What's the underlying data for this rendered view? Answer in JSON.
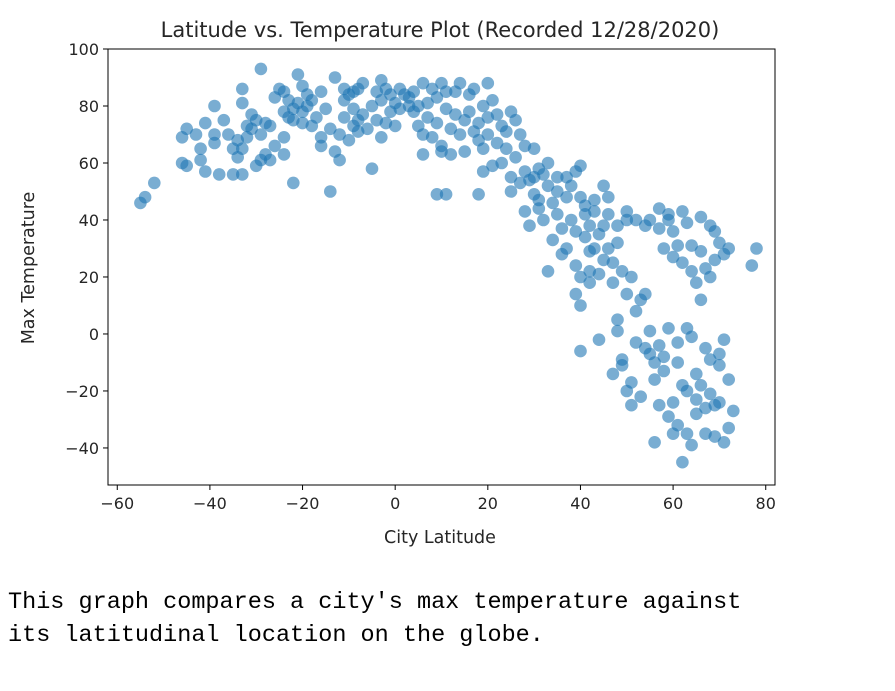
{
  "chart_data": {
    "type": "scatter",
    "title": "Latitude vs. Temperature Plot (Recorded 12/28/2020)",
    "xlabel": "City Latitude",
    "ylabel": "Max Temperature",
    "xlim": [
      -62,
      82
    ],
    "ylim": [
      -53,
      100
    ],
    "xticks": [
      -60,
      -40,
      -20,
      0,
      20,
      40,
      60,
      80
    ],
    "yticks": [
      -40,
      -20,
      0,
      20,
      40,
      60,
      80,
      100
    ],
    "grid": false,
    "marker_color": "#1f77b4",
    "marker_alpha": 0.6,
    "points": [
      [
        -55,
        46
      ],
      [
        -54,
        48
      ],
      [
        -52,
        53
      ],
      [
        -46,
        60
      ],
      [
        -46,
        69
      ],
      [
        -45,
        72
      ],
      [
        -45,
        59
      ],
      [
        -43,
        70
      ],
      [
        -42,
        61
      ],
      [
        -42,
        65
      ],
      [
        -41,
        74
      ],
      [
        -41,
        57
      ],
      [
        -39,
        80
      ],
      [
        -39,
        70
      ],
      [
        -39,
        67
      ],
      [
        -38,
        56
      ],
      [
        -37,
        75
      ],
      [
        -36,
        70
      ],
      [
        -35,
        56
      ],
      [
        -35,
        65
      ],
      [
        -34,
        62
      ],
      [
        -34,
        68
      ],
      [
        -33,
        81
      ],
      [
        -33,
        86
      ],
      [
        -33,
        65
      ],
      [
        -33,
        56
      ],
      [
        -32,
        73
      ],
      [
        -32,
        69
      ],
      [
        -31,
        77
      ],
      [
        -31,
        72
      ],
      [
        -30,
        59
      ],
      [
        -30,
        75
      ],
      [
        -29,
        93
      ],
      [
        -29,
        61
      ],
      [
        -29,
        70
      ],
      [
        -28,
        74
      ],
      [
        -28,
        63
      ],
      [
        -27,
        73
      ],
      [
        -27,
        61
      ],
      [
        -26,
        83
      ],
      [
        -26,
        66
      ],
      [
        -25,
        86
      ],
      [
        -24,
        78
      ],
      [
        -24,
        85
      ],
      [
        -24,
        63
      ],
      [
        -24,
        69
      ],
      [
        -23,
        76
      ],
      [
        -23,
        82
      ],
      [
        -22,
        79
      ],
      [
        -22,
        53
      ],
      [
        -22,
        75
      ],
      [
        -21,
        91
      ],
      [
        -21,
        81
      ],
      [
        -20,
        87
      ],
      [
        -20,
        78
      ],
      [
        -20,
        74
      ],
      [
        -19,
        84
      ],
      [
        -19,
        80
      ],
      [
        -18,
        73
      ],
      [
        -18,
        82
      ],
      [
        -17,
        76
      ],
      [
        -16,
        85
      ],
      [
        -16,
        69
      ],
      [
        -16,
        66
      ],
      [
        -15,
        79
      ],
      [
        -14,
        50
      ],
      [
        -14,
        72
      ],
      [
        -13,
        90
      ],
      [
        -13,
        64
      ],
      [
        -12,
        70
      ],
      [
        -12,
        61
      ],
      [
        -11,
        86
      ],
      [
        -11,
        82
      ],
      [
        -11,
        76
      ],
      [
        -10,
        84
      ],
      [
        -10,
        68
      ],
      [
        -9,
        85
      ],
      [
        -9,
        73
      ],
      [
        -9,
        79
      ],
      [
        -8,
        86
      ],
      [
        -8,
        75
      ],
      [
        -8,
        71
      ],
      [
        -7,
        77
      ],
      [
        -7,
        88
      ],
      [
        -6,
        72
      ],
      [
        -5,
        58
      ],
      [
        -5,
        80
      ],
      [
        -4,
        85
      ],
      [
        -4,
        75
      ],
      [
        -3,
        89
      ],
      [
        -3,
        69
      ],
      [
        -3,
        82
      ],
      [
        -2,
        74
      ],
      [
        -2,
        86
      ],
      [
        -1,
        78
      ],
      [
        -1,
        84
      ],
      [
        0,
        81
      ],
      [
        0,
        73
      ],
      [
        1,
        86
      ],
      [
        1,
        79
      ],
      [
        2,
        84
      ],
      [
        3,
        80
      ],
      [
        3,
        83
      ],
      [
        4,
        85
      ],
      [
        4,
        78
      ],
      [
        5,
        80
      ],
      [
        5,
        73
      ],
      [
        6,
        88
      ],
      [
        6,
        70
      ],
      [
        6,
        63
      ],
      [
        7,
        81
      ],
      [
        7,
        76
      ],
      [
        8,
        86
      ],
      [
        8,
        69
      ],
      [
        9,
        83
      ],
      [
        9,
        49
      ],
      [
        9,
        74
      ],
      [
        10,
        66
      ],
      [
        10,
        88
      ],
      [
        10,
        64
      ],
      [
        11,
        85
      ],
      [
        11,
        79
      ],
      [
        11,
        49
      ],
      [
        12,
        72
      ],
      [
        12,
        63
      ],
      [
        13,
        77
      ],
      [
        13,
        85
      ],
      [
        14,
        70
      ],
      [
        14,
        88
      ],
      [
        15,
        75
      ],
      [
        15,
        64
      ],
      [
        16,
        84
      ],
      [
        16,
        78
      ],
      [
        17,
        71
      ],
      [
        17,
        86
      ],
      [
        18,
        68
      ],
      [
        18,
        74
      ],
      [
        18,
        49
      ],
      [
        19,
        80
      ],
      [
        19,
        57
      ],
      [
        19,
        65
      ],
      [
        20,
        88
      ],
      [
        20,
        70
      ],
      [
        20,
        76
      ],
      [
        21,
        59
      ],
      [
        21,
        82
      ],
      [
        22,
        77
      ],
      [
        22,
        67
      ],
      [
        23,
        73
      ],
      [
        23,
        60
      ],
      [
        24,
        71
      ],
      [
        24,
        65
      ],
      [
        25,
        55
      ],
      [
        25,
        50
      ],
      [
        25,
        78
      ],
      [
        26,
        75
      ],
      [
        26,
        62
      ],
      [
        27,
        53
      ],
      [
        27,
        70
      ],
      [
        28,
        43
      ],
      [
        28,
        57
      ],
      [
        28,
        66
      ],
      [
        29,
        54
      ],
      [
        29,
        38
      ],
      [
        30,
        65
      ],
      [
        30,
        49
      ],
      [
        30,
        55
      ],
      [
        31,
        44
      ],
      [
        31,
        47
      ],
      [
        31,
        58
      ],
      [
        32,
        40
      ],
      [
        32,
        56
      ],
      [
        33,
        52
      ],
      [
        33,
        60
      ],
      [
        33,
        22
      ],
      [
        34,
        46
      ],
      [
        34,
        33
      ],
      [
        35,
        50
      ],
      [
        35,
        55
      ],
      [
        35,
        42
      ],
      [
        36,
        37
      ],
      [
        36,
        28
      ],
      [
        37,
        48
      ],
      [
        37,
        55
      ],
      [
        37,
        30
      ],
      [
        38,
        40
      ],
      [
        38,
        52
      ],
      [
        39,
        14
      ],
      [
        39,
        57
      ],
      [
        39,
        24
      ],
      [
        39,
        36
      ],
      [
        40,
        48
      ],
      [
        40,
        59
      ],
      [
        40,
        10
      ],
      [
        40,
        -6
      ],
      [
        40,
        20
      ],
      [
        41,
        42
      ],
      [
        41,
        45
      ],
      [
        41,
        34
      ],
      [
        42,
        18
      ],
      [
        42,
        22
      ],
      [
        42,
        38
      ],
      [
        42,
        29
      ],
      [
        43,
        43
      ],
      [
        43,
        30
      ],
      [
        43,
        47
      ],
      [
        44,
        -2
      ],
      [
        44,
        35
      ],
      [
        44,
        21
      ],
      [
        45,
        52
      ],
      [
        45,
        38
      ],
      [
        45,
        26
      ],
      [
        46,
        42
      ],
      [
        46,
        30
      ],
      [
        46,
        48
      ],
      [
        47,
        18
      ],
      [
        47,
        -14
      ],
      [
        47,
        25
      ],
      [
        48,
        5
      ],
      [
        48,
        1
      ],
      [
        48,
        38
      ],
      [
        48,
        32
      ],
      [
        49,
        -9
      ],
      [
        49,
        -11
      ],
      [
        49,
        22
      ],
      [
        50,
        -20
      ],
      [
        50,
        40
      ],
      [
        50,
        14
      ],
      [
        50,
        43
      ],
      [
        51,
        -17
      ],
      [
        51,
        -25
      ],
      [
        51,
        20
      ],
      [
        52,
        -3
      ],
      [
        52,
        40
      ],
      [
        52,
        8
      ],
      [
        53,
        12
      ],
      [
        53,
        -22
      ],
      [
        54,
        -5
      ],
      [
        54,
        38
      ],
      [
        54,
        14
      ],
      [
        55,
        1
      ],
      [
        55,
        40
      ],
      [
        55,
        -7
      ],
      [
        56,
        -38
      ],
      [
        56,
        -16
      ],
      [
        56,
        -10
      ],
      [
        57,
        44
      ],
      [
        57,
        -25
      ],
      [
        57,
        37
      ],
      [
        57,
        -4
      ],
      [
        58,
        -8
      ],
      [
        58,
        30
      ],
      [
        58,
        -13
      ],
      [
        59,
        2
      ],
      [
        59,
        -29
      ],
      [
        59,
        42
      ],
      [
        59,
        40
      ],
      [
        60,
        -24
      ],
      [
        60,
        -35
      ],
      [
        60,
        27
      ],
      [
        60,
        36
      ],
      [
        61,
        -3
      ],
      [
        61,
        -32
      ],
      [
        61,
        31
      ],
      [
        61,
        -10
      ],
      [
        62,
        -45
      ],
      [
        62,
        -18
      ],
      [
        62,
        43
      ],
      [
        62,
        25
      ],
      [
        63,
        -35
      ],
      [
        63,
        -20
      ],
      [
        63,
        39
      ],
      [
        63,
        2
      ],
      [
        64,
        -1
      ],
      [
        64,
        31
      ],
      [
        64,
        -39
      ],
      [
        64,
        22
      ],
      [
        65,
        -28
      ],
      [
        65,
        -23
      ],
      [
        65,
        18
      ],
      [
        65,
        -14
      ],
      [
        66,
        12
      ],
      [
        66,
        -18
      ],
      [
        66,
        29
      ],
      [
        66,
        41
      ],
      [
        67,
        -35
      ],
      [
        67,
        -26
      ],
      [
        67,
        -5
      ],
      [
        67,
        23
      ],
      [
        68,
        -21
      ],
      [
        68,
        38
      ],
      [
        68,
        -9
      ],
      [
        68,
        20
      ],
      [
        69,
        -36
      ],
      [
        69,
        -25
      ],
      [
        69,
        26
      ],
      [
        69,
        36
      ],
      [
        70,
        -24
      ],
      [
        70,
        -11
      ],
      [
        70,
        -7
      ],
      [
        70,
        32
      ],
      [
        71,
        -38
      ],
      [
        71,
        -2
      ],
      [
        71,
        28
      ],
      [
        72,
        -16
      ],
      [
        72,
        -33
      ],
      [
        72,
        30
      ],
      [
        73,
        -27
      ],
      [
        77,
        24
      ],
      [
        78,
        30
      ]
    ]
  },
  "caption": "This graph compares a city's max temperature against\nits latitudinal location on the globe."
}
